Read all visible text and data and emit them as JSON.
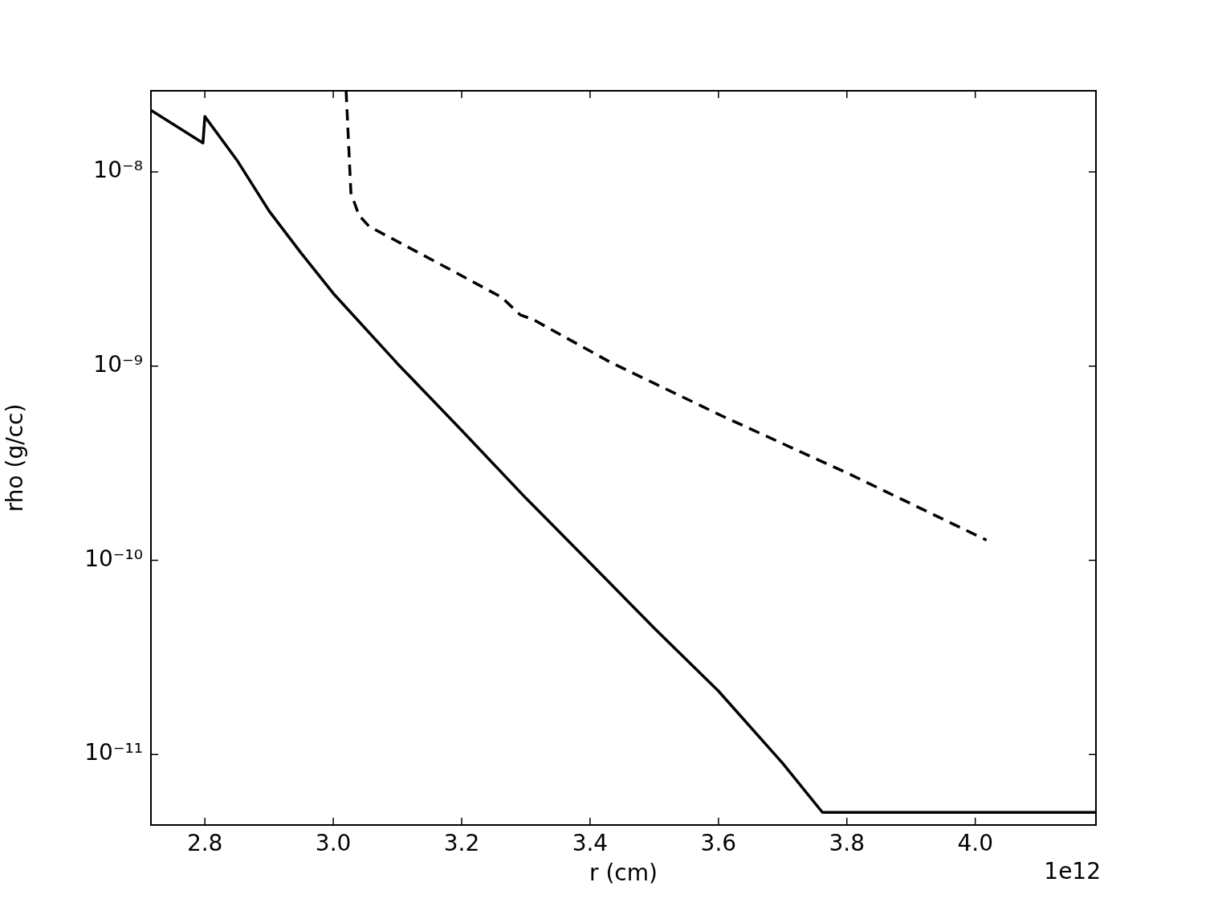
{
  "chart_data": {
    "type": "line",
    "xlabel": "r (cm)",
    "ylabel": "rho (g/cc)",
    "log": "y",
    "grid": false,
    "legend": false,
    "marker": "none",
    "xlim": [
      2.716,
      4.188
    ],
    "xticks": [
      {
        "value": 2.8,
        "label": "2.8"
      },
      {
        "value": 3.0,
        "label": "3.0"
      },
      {
        "value": 3.2,
        "label": "3.2"
      },
      {
        "value": 3.4,
        "label": "3.4"
      },
      {
        "value": 3.6,
        "label": "3.6"
      },
      {
        "value": 3.8,
        "label": "3.8"
      },
      {
        "value": 4.0,
        "label": "4.0"
      }
    ],
    "ylim": [
      4.33e-12,
      2.62e-08
    ],
    "yticks": [
      {
        "value": 1e-11,
        "label": "10⁻¹¹"
      },
      {
        "value": 1e-10,
        "label": "10⁻¹⁰"
      },
      {
        "value": 1e-09,
        "label": "10⁻⁹"
      },
      {
        "value": 1e-08,
        "label": "10⁻⁸"
      }
    ],
    "annotations": [
      "1e12"
    ],
    "series": [
      {
        "color": "#000000",
        "line_style": "solid",
        "x": [
          2.716,
          2.797,
          2.8,
          2.85,
          2.9,
          2.95,
          3.0,
          3.1,
          3.2,
          3.3,
          3.4,
          3.5,
          3.6,
          3.7,
          3.762,
          4.188
        ],
        "values": [
          2.08e-08,
          1.41e-08,
          1.93e-08,
          1.15e-08,
          6.3e-09,
          3.82e-09,
          2.37e-09,
          1.03e-09,
          4.67e-10,
          2.09e-10,
          9.7e-11,
          4.47e-11,
          2.12e-11,
          9e-12,
          5.03e-12,
          5.03e-12
        ]
      },
      {
        "color": "#000000",
        "line_style": "dashed",
        "x": [
          3.02,
          3.0275,
          3.04,
          3.056,
          3.181,
          3.2625,
          3.291,
          3.3125,
          3.431,
          3.606,
          3.806,
          4.0175
        ],
        "values": [
          2.62e-08,
          7.8e-09,
          5.98e-09,
          5.24e-09,
          3.16e-09,
          2.26e-09,
          1.84e-09,
          1.73e-09,
          1.05e-09,
          5.53e-10,
          2.76e-10,
          1.27e-10
        ]
      }
    ]
  }
}
